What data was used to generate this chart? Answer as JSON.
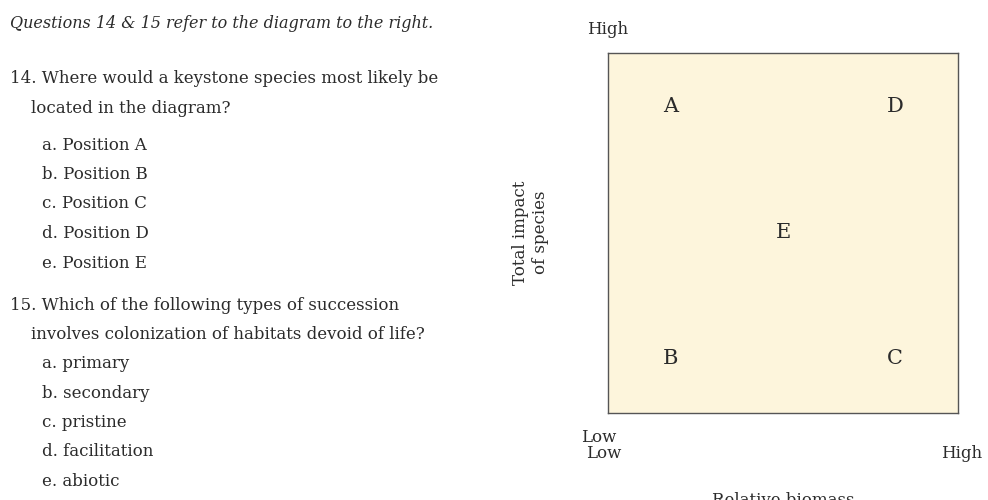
{
  "bg_color": "#ffffff",
  "plot_bg_color": "#fdf5dc",
  "title_text": "Questions 14 & 15 refer to the diagram to the right.",
  "q14_line1": "14. Where would a keystone species most likely be",
  "q14_line2": "    located in the diagram?",
  "q14_options": [
    "a. Position A",
    "b. Position B",
    "c. Position C",
    "d. Position D",
    "e. Position E"
  ],
  "q15_line1": "15. Which of the following types of succession",
  "q15_line2": "    involves colonization of habitats devoid of life?",
  "q15_options": [
    "a. primary",
    "b. secondary",
    "c. pristine",
    "d. facilitation",
    "e. abiotic"
  ],
  "ylabel": "Total impact\nof species",
  "xlabel": "Relative biomass\nof species",
  "y_low_label": "Low",
  "y_high_label": "High",
  "x_low_label": "Low",
  "x_high_label": "High",
  "points": {
    "A": [
      0.18,
      0.85
    ],
    "B": [
      0.18,
      0.15
    ],
    "C": [
      0.82,
      0.15
    ],
    "D": [
      0.82,
      0.85
    ],
    "E": [
      0.5,
      0.5
    ]
  },
  "point_fontsize": 15,
  "label_fontsize": 12,
  "tick_fontsize": 12,
  "text_fontsize": 12,
  "title_fontsize": 11.5,
  "text_color": "#2b2b2b"
}
